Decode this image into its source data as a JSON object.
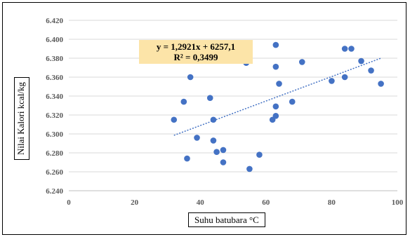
{
  "chart_data": {
    "type": "scatter",
    "xlabel": "Suhu batubara °C",
    "ylabel": "Nilai Kalori kcal/kg",
    "xlim": [
      0,
      100
    ],
    "ylim": [
      6.24,
      6.42
    ],
    "x_ticks": [
      "0",
      "20",
      "40",
      "60",
      "80",
      "100"
    ],
    "y_ticks": [
      "6.240",
      "6.260",
      "6.280",
      "6.300",
      "6.320",
      "6.340",
      "6.360",
      "6.380",
      "6.400",
      "6.420"
    ],
    "grid": "horizontal",
    "series": [
      {
        "color": "#4472c4",
        "points": [
          [
            32,
            6.315
          ],
          [
            35,
            6.334
          ],
          [
            36,
            6.274
          ],
          [
            37,
            6.36
          ],
          [
            39,
            6.296
          ],
          [
            43,
            6.338
          ],
          [
            44,
            6.315
          ],
          [
            44,
            6.293
          ],
          [
            45,
            6.281
          ],
          [
            47,
            6.283
          ],
          [
            47,
            6.27
          ],
          [
            54,
            6.375
          ],
          [
            55,
            6.263
          ],
          [
            58,
            6.278
          ],
          [
            62,
            6.315
          ],
          [
            63,
            6.394
          ],
          [
            63,
            6.371
          ],
          [
            63,
            6.329
          ],
          [
            63,
            6.319
          ],
          [
            64,
            6.353
          ],
          [
            68,
            6.334
          ],
          [
            71,
            6.376
          ],
          [
            80,
            6.356
          ],
          [
            84,
            6.39
          ],
          [
            84,
            6.36
          ],
          [
            86,
            6.39
          ],
          [
            89,
            6.377
          ],
          [
            92,
            6.367
          ],
          [
            95,
            6.353
          ]
        ]
      }
    ],
    "trendline": {
      "type": "linear",
      "x_range": [
        32,
        95
      ],
      "y_range": [
        6.2985,
        6.38
      ],
      "color": "#4472c4",
      "style": "dotted"
    },
    "annotation": {
      "equation": "y = 1,2921x + 6257,1",
      "r_squared": "R² = 0,3499",
      "background": "#fce4a8"
    }
  }
}
